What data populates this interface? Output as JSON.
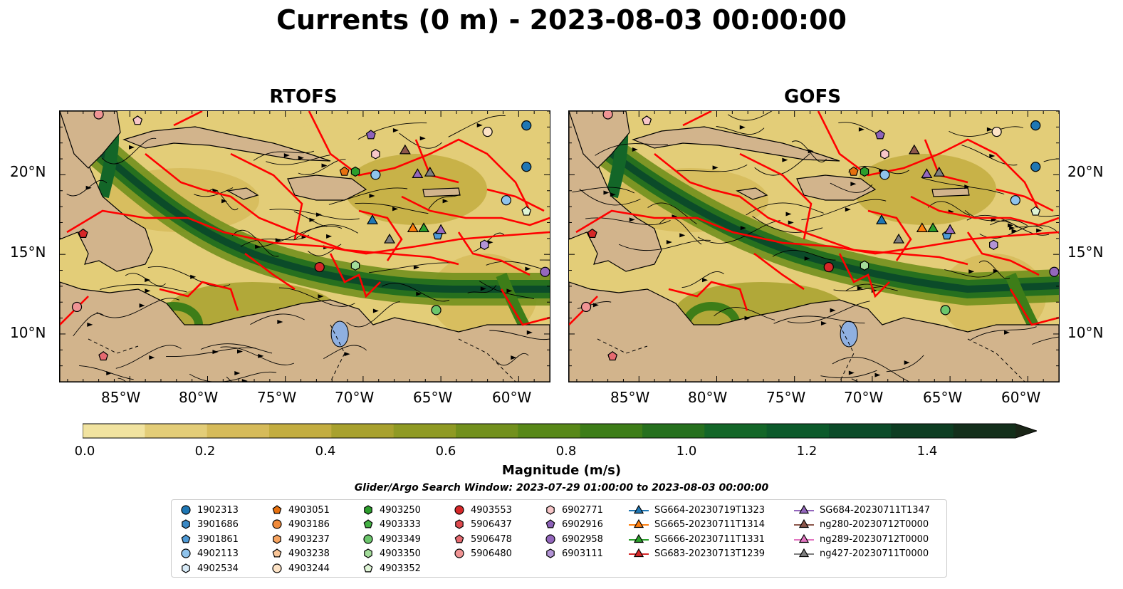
{
  "title": "Currents (0 m) - 2023-08-03 00:00:00",
  "panels": [
    {
      "title": "RTOFS"
    },
    {
      "title": "GOFS"
    }
  ],
  "axes": {
    "x_ticks": [
      "85°W",
      "80°W",
      "75°W",
      "70°W",
      "65°W",
      "60°W"
    ],
    "y_ticks": [
      "20°N",
      "15°N",
      "10°N"
    ],
    "lon_range": [
      -89.5,
      -58
    ],
    "lat_range": [
      7,
      24
    ]
  },
  "colorbar": {
    "label": "Magnitude (m/s)",
    "ticks": [
      "0.0",
      "0.2",
      "0.4",
      "0.6",
      "0.8",
      "1.0",
      "1.2",
      "1.4"
    ],
    "range": [
      0,
      1.5
    ],
    "colors": [
      "#fffacd",
      "#f1e3a0",
      "#e3cd78",
      "#d6bb5a",
      "#c3ad40",
      "#a8a12e",
      "#8f9a24",
      "#72901d",
      "#588818",
      "#3d7d18",
      "#26701e",
      "#136628",
      "#0c5a2b",
      "#0b4b29",
      "#0d3d22",
      "#132f1b",
      "#1a2517"
    ],
    "extend": "max"
  },
  "land_color": "#d2b48c",
  "lake_color": "#8fb0e0",
  "boundary_color": "#ff0000",
  "search_window": "Glider/Argo Search Window: 2023-07-29 01:00:00 to 2023-08-03 00:00:00",
  "legend": {
    "columns": [
      [
        {
          "label": "1902313",
          "marker": "circle",
          "color": "#1f77b4"
        },
        {
          "label": "3901686",
          "marker": "hexagon",
          "color": "#3a88c4"
        },
        {
          "label": "3901861",
          "marker": "pentagon",
          "color": "#4f9ad6"
        },
        {
          "label": "4902113",
          "marker": "circle",
          "color": "#8fc3ec"
        },
        {
          "label": "4902534",
          "marker": "hexagon",
          "color": "#d8ebf8"
        }
      ],
      [
        {
          "label": "4903051",
          "marker": "pentagon",
          "color": "#e6700f"
        },
        {
          "label": "4903186",
          "marker": "circle",
          "color": "#f08a3a"
        },
        {
          "label": "4903237",
          "marker": "hexagon",
          "color": "#f7a460"
        },
        {
          "label": "4903238",
          "marker": "pentagon",
          "color": "#f9c597"
        },
        {
          "label": "4903244",
          "marker": "circle",
          "color": "#fde3c6"
        }
      ],
      [
        {
          "label": "4903250",
          "marker": "hexagon",
          "color": "#2c9e2c"
        },
        {
          "label": "4903333",
          "marker": "pentagon",
          "color": "#44b144"
        },
        {
          "label": "4903349",
          "marker": "circle",
          "color": "#6cc66c"
        },
        {
          "label": "4903350",
          "marker": "hexagon",
          "color": "#a3dc9a"
        },
        {
          "label": "4903352",
          "marker": "pentagon",
          "color": "#dff5d6"
        }
      ],
      [
        {
          "label": "4903553",
          "marker": "circle",
          "color": "#d62728"
        },
        {
          "label": "5906437",
          "marker": "hexagon",
          "color": "#df4a4e"
        },
        {
          "label": "5906478",
          "marker": "pentagon",
          "color": "#e66a70"
        },
        {
          "label": "5906480",
          "marker": "circle",
          "color": "#f09494"
        }
      ],
      [
        {
          "label": "6902771",
          "marker": "hexagon",
          "color": "#f7c6c8"
        },
        {
          "label": "6902916",
          "marker": "pentagon",
          "color": "#8d62b9"
        },
        {
          "label": "6902958",
          "marker": "circle",
          "color": "#9467bd"
        },
        {
          "label": "6903111",
          "marker": "hexagon",
          "color": "#b394d6"
        }
      ],
      [
        {
          "label": "SG664-20230719T1323",
          "marker": "triangle-line",
          "color": "#1f77b4"
        },
        {
          "label": "SG665-20230711T1314",
          "marker": "triangle-line",
          "color": "#ff7f0e"
        },
        {
          "label": "SG666-20230711T1331",
          "marker": "triangle-line",
          "color": "#2ca02c"
        },
        {
          "label": "SG683-20230713T1239",
          "marker": "triangle-line",
          "color": "#d62728"
        }
      ],
      [
        {
          "label": "SG684-20230711T1347",
          "marker": "triangle-line",
          "color": "#9467bd"
        },
        {
          "label": "ng280-20230712T0000",
          "marker": "triangle-line",
          "color": "#8c564b"
        },
        {
          "label": "ng289-20230712T0000",
          "marker": "triangle-line",
          "color": "#e377c2"
        },
        {
          "label": "ng427-20230711T0000",
          "marker": "triangle-line",
          "color": "#7f7f7f"
        }
      ]
    ]
  }
}
